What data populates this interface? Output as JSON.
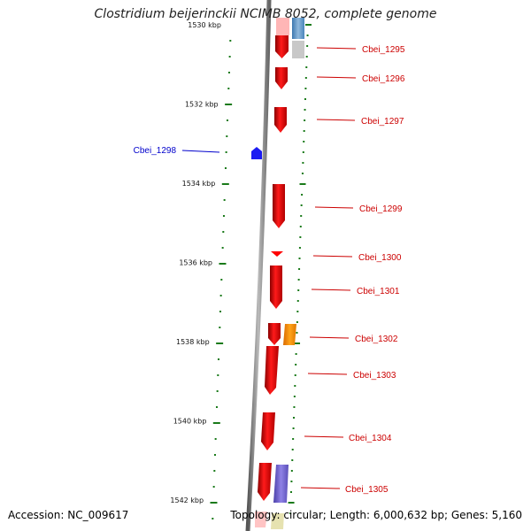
{
  "title": "Clostridium beijerinckii NCIMB 8052, complete genome",
  "accession": "Accession: NC_009617",
  "stats": "Topology: circular; Length: 6,000,632 bp; Genes: 5,160",
  "colors": {
    "backbone": "#7f7f7f",
    "tick": "#1a7a1a",
    "gene_label_red": "#cc0000",
    "gene_label_blue": "#0000cc"
  },
  "tick_labels": [
    {
      "kbp": 1530,
      "text": "1530 kbp"
    },
    {
      "kbp": 1532,
      "text": "1532 kbp"
    },
    {
      "kbp": 1534,
      "text": "1534 kbp"
    },
    {
      "kbp": 1536,
      "text": "1536 kbp"
    },
    {
      "kbp": 1538,
      "text": "1538 kbp"
    },
    {
      "kbp": 1540,
      "text": "1540 kbp"
    },
    {
      "kbp": 1542,
      "text": "1542 kbp"
    }
  ],
  "gene_labels": [
    {
      "text": "Cbei_1295",
      "color": "red"
    },
    {
      "text": "Cbei_1296",
      "color": "red"
    },
    {
      "text": "Cbei_1297",
      "color": "red"
    },
    {
      "text": "Cbei_1298",
      "color": "blue"
    },
    {
      "text": "Cbei_1299",
      "color": "red"
    },
    {
      "text": "Cbei_1300",
      "color": "red"
    },
    {
      "text": "Cbei_1301",
      "color": "red"
    },
    {
      "text": "Cbei_1302",
      "color": "red"
    },
    {
      "text": "Cbei_1303",
      "color": "red"
    },
    {
      "text": "Cbei_1304",
      "color": "red"
    },
    {
      "text": "Cbei_1305",
      "color": "red"
    }
  ]
}
